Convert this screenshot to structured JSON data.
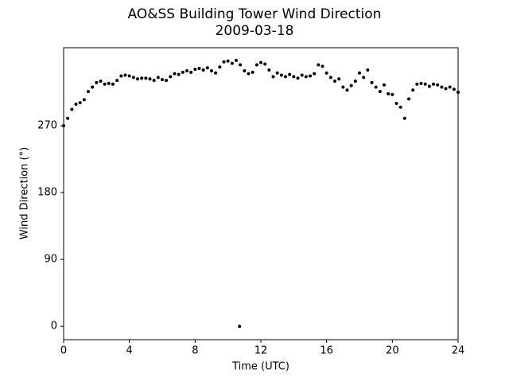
{
  "chart_data": {
    "type": "scatter",
    "title": "AO&SS Building Tower Wind Direction",
    "subtitle": "2009-03-18",
    "x_label": "Time (UTC)",
    "y_label": "Wind Direction (°)",
    "color": "#000000",
    "xlim": [
      0,
      24
    ],
    "xticks": [
      0,
      4,
      8,
      12,
      16,
      20,
      24
    ],
    "ylim": [
      -18,
      375
    ],
    "yticks": [
      0,
      90,
      180,
      270
    ],
    "x": [
      0,
      0.25,
      0.5,
      0.75,
      1,
      1.25,
      1.5,
      1.75,
      2,
      2.25,
      2.5,
      2.75,
      3,
      3.25,
      3.5,
      3.75,
      4,
      4.25,
      4.5,
      4.75,
      5,
      5.25,
      5.5,
      5.75,
      6,
      6.25,
      6.5,
      6.75,
      7,
      7.25,
      7.5,
      7.75,
      8,
      8.25,
      8.5,
      8.75,
      9,
      9.25,
      9.5,
      9.75,
      10,
      10.25,
      10.5,
      10.75,
      11,
      11.25,
      11.5,
      11.75,
      12,
      12.25,
      12.5,
      12.75,
      13,
      13.25,
      13.5,
      13.75,
      14,
      14.25,
      14.5,
      14.75,
      15,
      15.25,
      15.5,
      15.75,
      16,
      16.25,
      16.5,
      16.75,
      17,
      17.25,
      17.5,
      17.75,
      18,
      18.25,
      18.5,
      18.75,
      19,
      19.25,
      19.5,
      19.75,
      20,
      20.25,
      20.5,
      20.75,
      21,
      21.25,
      21.5,
      21.75,
      22,
      22.25,
      22.5,
      22.75,
      23,
      23.25,
      23.5,
      23.75,
      24,
      10.7
    ],
    "y": [
      270,
      280,
      292,
      299,
      301,
      305,
      316,
      322,
      328,
      330,
      326,
      327,
      326,
      331,
      337,
      338,
      337,
      335,
      333,
      334,
      334,
      333,
      331,
      335,
      332,
      331,
      336,
      340,
      339,
      342,
      344,
      342,
      346,
      347,
      345,
      348,
      344,
      341,
      349,
      356,
      357,
      354,
      358,
      352,
      344,
      340,
      342,
      352,
      355,
      353,
      345,
      336,
      341,
      338,
      336,
      339,
      336,
      334,
      338,
      336,
      337,
      340,
      352,
      350,
      341,
      335,
      330,
      333,
      322,
      318,
      324,
      330,
      341,
      335,
      345,
      328,
      322,
      316,
      325,
      313,
      312,
      300,
      295,
      280,
      306,
      318,
      326,
      327,
      326,
      323,
      326,
      325,
      322,
      320,
      322,
      319,
      315,
      0
    ]
  }
}
